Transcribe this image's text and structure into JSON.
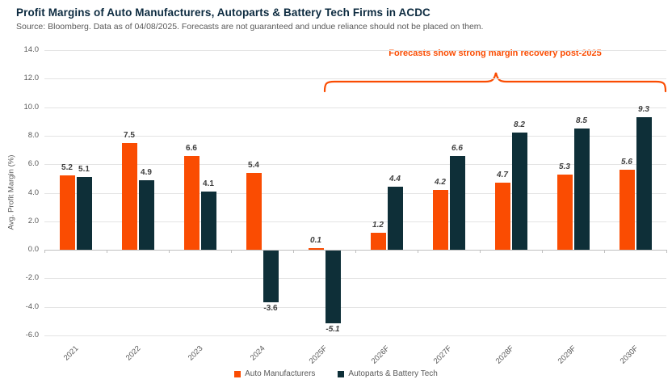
{
  "header": {
    "title": "Profit Margins of Auto Manufacturers, Autoparts & Battery Tech Firms in ACDC",
    "subtitle": "Source: Bloomberg.  Data as of 04/08/2025. Forecasts are not guaranteed and undue reliance should not be placed on them."
  },
  "annotation": {
    "text": "Forecasts show strong margin recovery post-2025",
    "color": "#FA4C02"
  },
  "chart_data": {
    "type": "bar",
    "title": "Profit Margins of Auto Manufacturers, Autoparts & Battery Tech Firms in ACDC",
    "xlabel": "",
    "ylabel": "Avg. Profit Margin (%)",
    "ylim": [
      -6.0,
      14.0
    ],
    "ytick_step": 2.0,
    "ytick_labels": [
      "14.0",
      "12.0",
      "10.0",
      "8.0",
      "6.0",
      "4.0",
      "2.0",
      "0.0",
      "-2.0",
      "-4.0",
      "-6.0"
    ],
    "grid": true,
    "legend_position": "bottom",
    "categories": [
      "2021",
      "2022",
      "2023",
      "2024",
      "2025F",
      "2026F",
      "2027F",
      "2028F",
      "2029F",
      "2030F"
    ],
    "forecast_suffix": "F",
    "series": [
      {
        "name": "Auto Manufacturers",
        "color": "#FA4C02",
        "values": [
          5.2,
          7.5,
          6.6,
          5.4,
          0.1,
          1.2,
          4.2,
          4.7,
          5.3,
          5.6
        ]
      },
      {
        "name": "Autoparts & Battery Tech",
        "color": "#0E2F38",
        "values": [
          5.1,
          4.9,
          4.1,
          -3.6,
          -5.1,
          4.4,
          6.6,
          8.2,
          8.5,
          9.3
        ]
      }
    ]
  },
  "colors": {
    "title": "#0D2B40",
    "axis_text": "#595959",
    "data_label": "#3F3F3F",
    "gridline": "#E4E4E4",
    "zero_axis": "#BFBFBF"
  }
}
